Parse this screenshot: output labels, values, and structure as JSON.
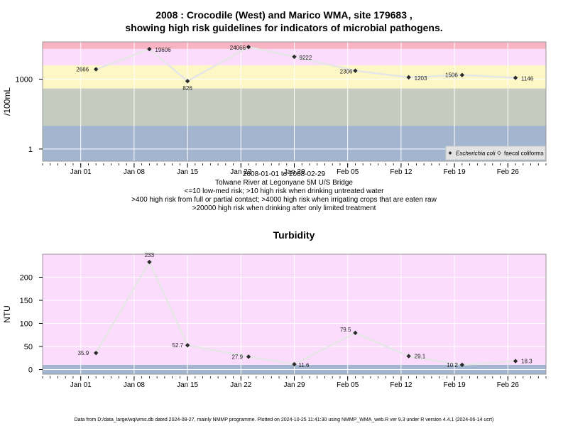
{
  "titles": {
    "line1": "2008 : Crocodile (West) and Marico WMA, site 179683 ,",
    "line2": "showing high risk guidelines for indicators of microbial pathogens."
  },
  "captions": [
    "2008-01-01 to 2008-02-29",
    "Tolwane River at Legonyane 5M U/S Bridge",
    "<=10 low-med risk; >10 high risk when drinking untreated water",
    ">400 high risk from full or partial contact; >4000 high risk when irrigating crops that are eaten raw",
    ">20000 high risk when drinking after only limited treatment"
  ],
  "footer": "Data from D:/data_large/wq/wms.db dated 2024-08-27, mainly NMMP programme. Plotted on 2024-10-25 11:41:30 using NMMP_WMA_web.R ver 9.3 under R version 4.4.1 (2024-06-14 ucrt)",
  "colors": {
    "band_blue": "#a3b5cf",
    "band_gray": "#c5ccbf",
    "band_yellow": "#fdf6c5",
    "band_pink": "#fcdcfc",
    "band_red": "#f9b4c4",
    "series_line": "#e6e6e6",
    "marker": "#2b2b2b"
  },
  "chart_data": [
    {
      "type": "line",
      "ylabel": "/100mL",
      "yscale": "log",
      "ylim": [
        0.3,
        40000
      ],
      "xlim": [
        "2007-12-27",
        "2008-03-02"
      ],
      "x_ticks": [
        "Jan 01",
        "Jan 08",
        "Jan 15",
        "Jan 22",
        "Jan 29",
        "Feb 05",
        "Feb 12",
        "Feb 19",
        "Feb 26"
      ],
      "x_tick_dates": [
        "2008-01-01",
        "2008-01-08",
        "2008-01-15",
        "2008-01-22",
        "2008-01-29",
        "2008-02-05",
        "2008-02-12",
        "2008-02-19",
        "2008-02-26"
      ],
      "y_ticks": [
        1,
        1000
      ],
      "y_tick_labels": [
        "1",
        "1000"
      ],
      "bands": [
        {
          "from": 0.3,
          "to": 10,
          "color": "band_blue"
        },
        {
          "from": 10,
          "to": 400,
          "color": "band_gray"
        },
        {
          "from": 400,
          "to": 4000,
          "color": "band_yellow"
        },
        {
          "from": 4000,
          "to": 20000,
          "color": "band_pink"
        },
        {
          "from": 20000,
          "to": 40000,
          "color": "band_red"
        }
      ],
      "legend": {
        "position": "bottom-right",
        "entries": [
          "Escherichia coli",
          "faecal coliforms"
        ]
      },
      "series": [
        {
          "name": "Escherichia coli",
          "x": [
            "2008-01-03",
            "2008-01-10",
            "2008-01-15",
            "2008-01-23",
            "2008-01-29",
            "2008-02-06",
            "2008-02-13",
            "2008-02-20",
            "2008-02-27"
          ],
          "y": [
            2666,
            19606,
            826,
            24066,
            9222,
            2306,
            1203,
            1506,
            1146
          ],
          "labels": [
            "2666",
            "19606",
            "826",
            "24066",
            "9222",
            "2306",
            "1203",
            "1506",
            "1146"
          ]
        }
      ]
    },
    {
      "type": "line",
      "title": "Turbidity",
      "ylabel": "NTU",
      "ylim": [
        -10,
        250
      ],
      "xlim": [
        "2007-12-27",
        "2008-03-02"
      ],
      "x_ticks": [
        "Jan 01",
        "Jan 08",
        "Jan 15",
        "Jan 22",
        "Jan 29",
        "Feb 05",
        "Feb 12",
        "Feb 19",
        "Feb 26"
      ],
      "x_tick_dates": [
        "2008-01-01",
        "2008-01-08",
        "2008-01-15",
        "2008-01-22",
        "2008-01-29",
        "2008-02-05",
        "2008-02-12",
        "2008-02-19",
        "2008-02-26"
      ],
      "y_ticks": [
        0,
        50,
        100,
        150,
        200
      ],
      "y_tick_labels": [
        "0",
        "50",
        "100",
        "150",
        "200"
      ],
      "bands": [
        {
          "from": -10,
          "to": 10,
          "color": "band_blue"
        },
        {
          "from": 10,
          "to": 250,
          "color": "band_pink"
        }
      ],
      "series": [
        {
          "x": [
            "2008-01-03",
            "2008-01-10",
            "2008-01-15",
            "2008-01-23",
            "2008-01-29",
            "2008-02-06",
            "2008-02-13",
            "2008-02-20",
            "2008-02-27"
          ],
          "y": [
            35.9,
            233,
            52.7,
            27.9,
            11.6,
            79.5,
            29.1,
            10.2,
            18.3
          ],
          "labels": [
            "35.9",
            "233",
            "52.7",
            "27.9",
            "11.6",
            "79.5",
            "29.1",
            "10.2",
            "18.3"
          ]
        }
      ]
    }
  ]
}
